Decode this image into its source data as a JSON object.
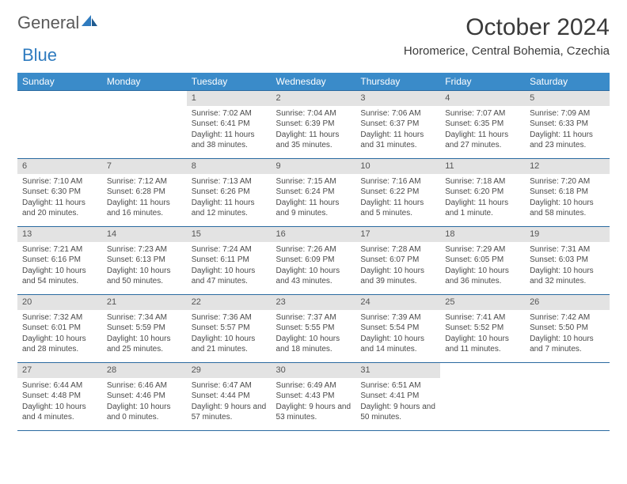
{
  "logo": {
    "general": "General",
    "blue": "Blue"
  },
  "colors": {
    "header_bg": "#3a8bc9",
    "header_fg": "#ffffff",
    "daynum_bg": "#e3e3e3",
    "rule": "#2a6aa0",
    "brand_blue": "#2f7bbf",
    "text": "#3a3a3a"
  },
  "title": "October 2024",
  "location": "Horomerice, Central Bohemia, Czechia",
  "weekdays": [
    "Sunday",
    "Monday",
    "Tuesday",
    "Wednesday",
    "Thursday",
    "Friday",
    "Saturday"
  ],
  "weeks": [
    [
      null,
      null,
      {
        "n": "1",
        "sr": "7:02 AM",
        "ss": "6:41 PM",
        "dl": "11 hours and 38 minutes."
      },
      {
        "n": "2",
        "sr": "7:04 AM",
        "ss": "6:39 PM",
        "dl": "11 hours and 35 minutes."
      },
      {
        "n": "3",
        "sr": "7:06 AM",
        "ss": "6:37 PM",
        "dl": "11 hours and 31 minutes."
      },
      {
        "n": "4",
        "sr": "7:07 AM",
        "ss": "6:35 PM",
        "dl": "11 hours and 27 minutes."
      },
      {
        "n": "5",
        "sr": "7:09 AM",
        "ss": "6:33 PM",
        "dl": "11 hours and 23 minutes."
      }
    ],
    [
      {
        "n": "6",
        "sr": "7:10 AM",
        "ss": "6:30 PM",
        "dl": "11 hours and 20 minutes."
      },
      {
        "n": "7",
        "sr": "7:12 AM",
        "ss": "6:28 PM",
        "dl": "11 hours and 16 minutes."
      },
      {
        "n": "8",
        "sr": "7:13 AM",
        "ss": "6:26 PM",
        "dl": "11 hours and 12 minutes."
      },
      {
        "n": "9",
        "sr": "7:15 AM",
        "ss": "6:24 PM",
        "dl": "11 hours and 9 minutes."
      },
      {
        "n": "10",
        "sr": "7:16 AM",
        "ss": "6:22 PM",
        "dl": "11 hours and 5 minutes."
      },
      {
        "n": "11",
        "sr": "7:18 AM",
        "ss": "6:20 PM",
        "dl": "11 hours and 1 minute."
      },
      {
        "n": "12",
        "sr": "7:20 AM",
        "ss": "6:18 PM",
        "dl": "10 hours and 58 minutes."
      }
    ],
    [
      {
        "n": "13",
        "sr": "7:21 AM",
        "ss": "6:16 PM",
        "dl": "10 hours and 54 minutes."
      },
      {
        "n": "14",
        "sr": "7:23 AM",
        "ss": "6:13 PM",
        "dl": "10 hours and 50 minutes."
      },
      {
        "n": "15",
        "sr": "7:24 AM",
        "ss": "6:11 PM",
        "dl": "10 hours and 47 minutes."
      },
      {
        "n": "16",
        "sr": "7:26 AM",
        "ss": "6:09 PM",
        "dl": "10 hours and 43 minutes."
      },
      {
        "n": "17",
        "sr": "7:28 AM",
        "ss": "6:07 PM",
        "dl": "10 hours and 39 minutes."
      },
      {
        "n": "18",
        "sr": "7:29 AM",
        "ss": "6:05 PM",
        "dl": "10 hours and 36 minutes."
      },
      {
        "n": "19",
        "sr": "7:31 AM",
        "ss": "6:03 PM",
        "dl": "10 hours and 32 minutes."
      }
    ],
    [
      {
        "n": "20",
        "sr": "7:32 AM",
        "ss": "6:01 PM",
        "dl": "10 hours and 28 minutes."
      },
      {
        "n": "21",
        "sr": "7:34 AM",
        "ss": "5:59 PM",
        "dl": "10 hours and 25 minutes."
      },
      {
        "n": "22",
        "sr": "7:36 AM",
        "ss": "5:57 PM",
        "dl": "10 hours and 21 minutes."
      },
      {
        "n": "23",
        "sr": "7:37 AM",
        "ss": "5:55 PM",
        "dl": "10 hours and 18 minutes."
      },
      {
        "n": "24",
        "sr": "7:39 AM",
        "ss": "5:54 PM",
        "dl": "10 hours and 14 minutes."
      },
      {
        "n": "25",
        "sr": "7:41 AM",
        "ss": "5:52 PM",
        "dl": "10 hours and 11 minutes."
      },
      {
        "n": "26",
        "sr": "7:42 AM",
        "ss": "5:50 PM",
        "dl": "10 hours and 7 minutes."
      }
    ],
    [
      {
        "n": "27",
        "sr": "6:44 AM",
        "ss": "4:48 PM",
        "dl": "10 hours and 4 minutes."
      },
      {
        "n": "28",
        "sr": "6:46 AM",
        "ss": "4:46 PM",
        "dl": "10 hours and 0 minutes."
      },
      {
        "n": "29",
        "sr": "6:47 AM",
        "ss": "4:44 PM",
        "dl": "9 hours and 57 minutes."
      },
      {
        "n": "30",
        "sr": "6:49 AM",
        "ss": "4:43 PM",
        "dl": "9 hours and 53 minutes."
      },
      {
        "n": "31",
        "sr": "6:51 AM",
        "ss": "4:41 PM",
        "dl": "9 hours and 50 minutes."
      },
      null,
      null
    ]
  ],
  "labels": {
    "sunrise": "Sunrise: ",
    "sunset": "Sunset: ",
    "daylight": "Daylight: "
  }
}
